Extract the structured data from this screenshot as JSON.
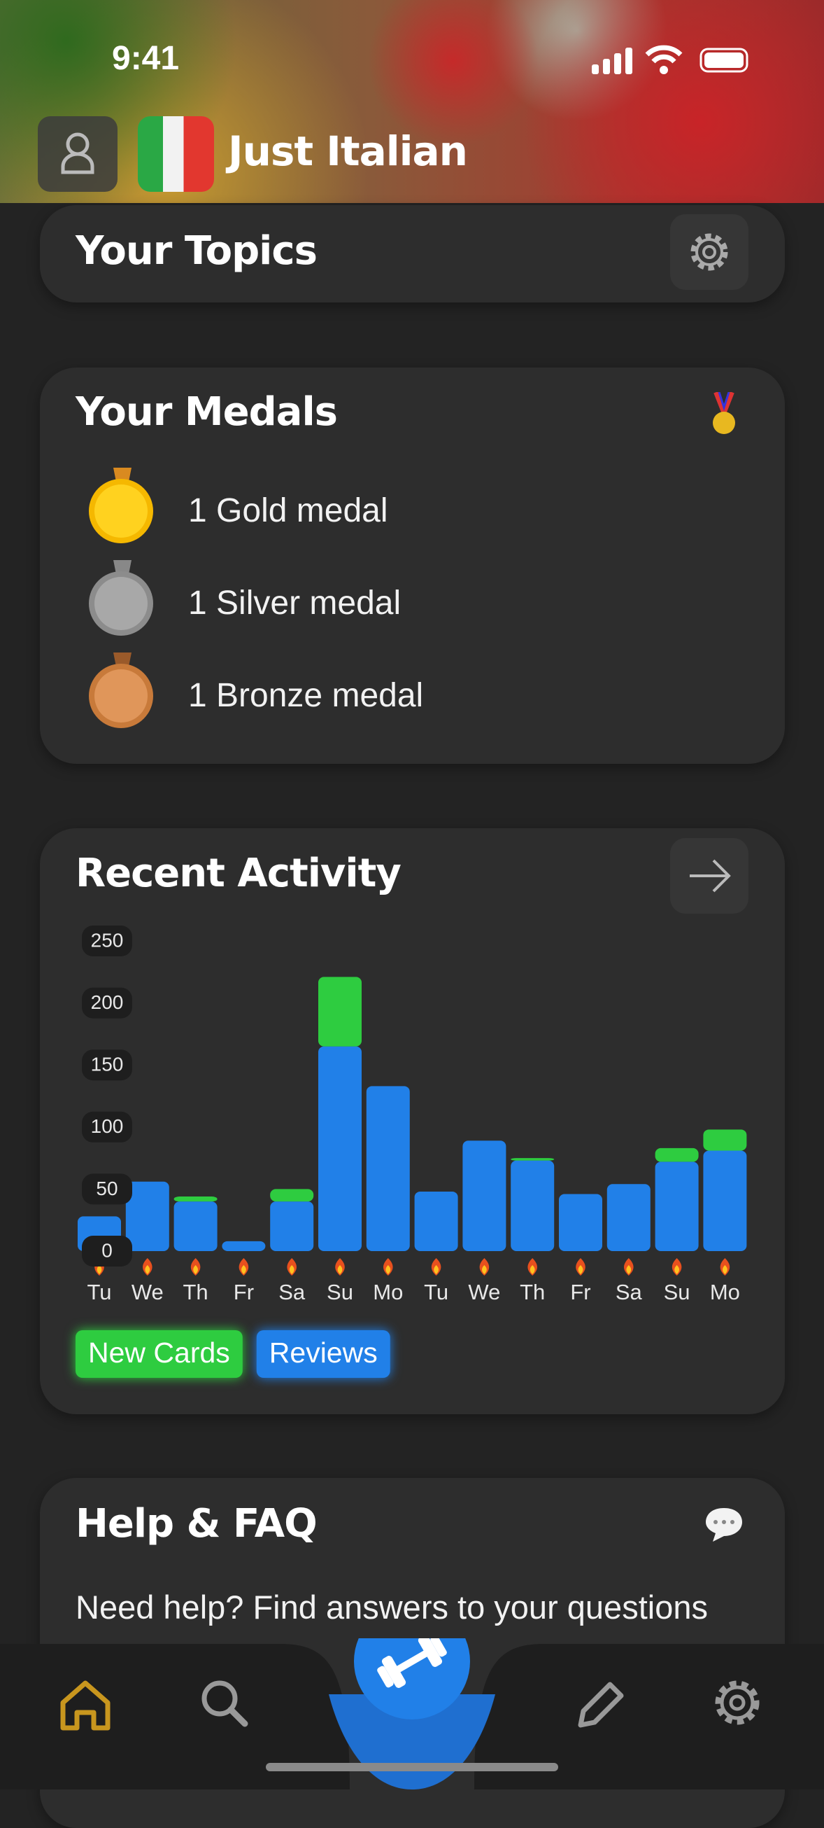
{
  "status_bar": {
    "time": "9:41"
  },
  "header": {
    "title": "Just Italian"
  },
  "topics": {
    "title": "Your Topics"
  },
  "medals": {
    "title": "Your Medals",
    "items": [
      "1 Gold medal",
      "1 Silver medal",
      "1 Bronze medal"
    ]
  },
  "chart_data": {
    "type": "bar",
    "stacked": true,
    "title": "Recent Activity",
    "categories": [
      "Tu",
      "We",
      "Th",
      "Fr",
      "Sa",
      "Su",
      "Mo",
      "Tu",
      "We",
      "Th",
      "Fr",
      "Sa",
      "Su",
      "Mo"
    ],
    "series": [
      {
        "name": "New Cards",
        "color": "#2ecc40",
        "values": [
          0,
          0,
          4,
          0,
          10,
          56,
          0,
          0,
          0,
          2,
          0,
          0,
          11,
          17
        ]
      },
      {
        "name": "Reviews",
        "color": "#2180e8",
        "values": [
          28,
          56,
          40,
          8,
          40,
          165,
          133,
          48,
          89,
          73,
          46,
          54,
          72,
          81
        ]
      }
    ],
    "ylim": [
      0,
      250
    ],
    "yticks": [
      0,
      50,
      100,
      150,
      200,
      250
    ],
    "grid": false,
    "legend": "bottom-left"
  },
  "help": {
    "title": "Help & FAQ",
    "text": "Need help? Find answers to your questions"
  }
}
